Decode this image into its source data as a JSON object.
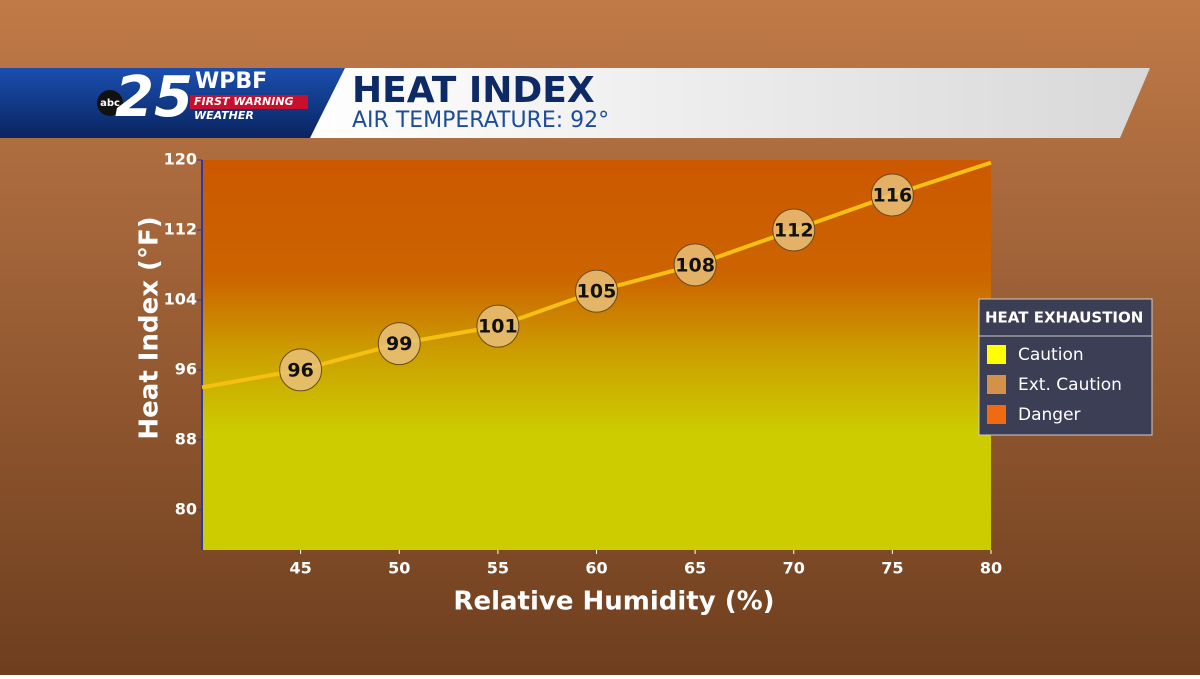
{
  "branding": {
    "network": "abc",
    "channel": "25",
    "station": "WPBF",
    "line1": "FIRST WARNING",
    "line2": "WEATHER"
  },
  "chart_data": {
    "type": "line",
    "title": "HEAT INDEX",
    "subtitle": "AIR TEMPERATURE: 92°",
    "x_label": "Relative Humidity (%)",
    "y_label": "Heat Index (°F)",
    "xlim": [
      40,
      80
    ],
    "xticks": [
      45,
      50,
      55,
      60,
      65,
      70,
      75,
      80
    ],
    "ylim": [
      75.4,
      120
    ],
    "yticks": [
      80,
      88,
      96,
      104,
      112,
      120
    ],
    "series": [
      {
        "name": "Heat Index",
        "color": "#f5c010",
        "x": [
          40,
          45,
          50,
          55,
          60,
          65,
          70,
          75,
          80
        ],
        "values": [
          94,
          96,
          99,
          101,
          105,
          108,
          112,
          116,
          119.7
        ],
        "value_labels": [
          null,
          "96",
          "99",
          "101",
          "105",
          "108",
          "112",
          "116",
          null
        ]
      }
    ],
    "legend": {
      "title": "HEAT EXHAUSTION",
      "items": [
        {
          "name": "Caution",
          "color": "#ffff00"
        },
        {
          "name": "Ext. Caution",
          "color": "#d4914a"
        },
        {
          "name": "Danger",
          "color": "#f06a10"
        }
      ]
    }
  }
}
